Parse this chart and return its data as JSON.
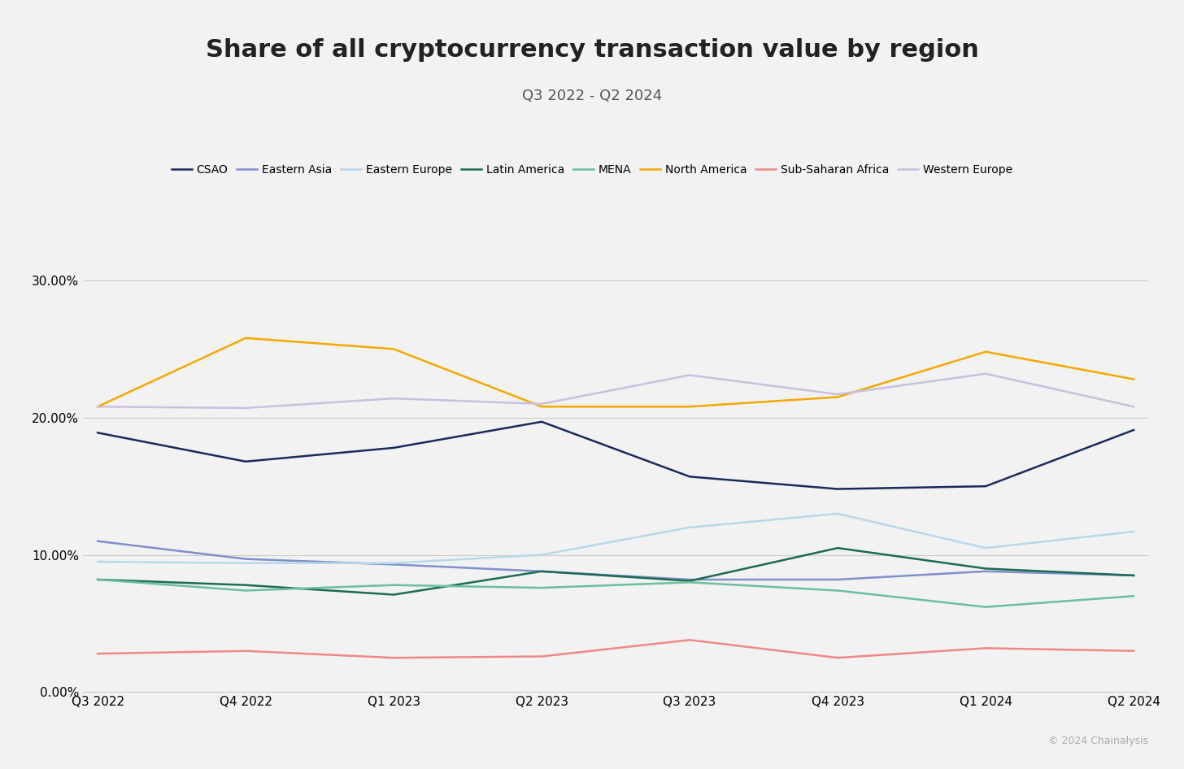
{
  "title": "Share of all cryptocurrency transaction value by region",
  "subtitle": "Q3 2022 - Q2 2024",
  "copyright": "© 2024 Chainalysis",
  "x_labels": [
    "Q3 2022",
    "Q4 2022",
    "Q1 2023",
    "Q2 2023",
    "Q3 2023",
    "Q4 2023",
    "Q1 2024",
    "Q2 2024"
  ],
  "series": [
    {
      "name": "CSAO",
      "color": "#1b2a5c",
      "values": [
        0.189,
        0.168,
        0.178,
        0.197,
        0.157,
        0.148,
        0.15,
        0.191
      ]
    },
    {
      "name": "Eastern Asia",
      "color": "#8090cc",
      "values": [
        0.11,
        0.097,
        0.093,
        0.088,
        0.082,
        0.082,
        0.088,
        0.085
      ]
    },
    {
      "name": "Eastern Europe",
      "color": "#b8d8ea",
      "values": [
        0.095,
        0.094,
        0.094,
        0.1,
        0.12,
        0.13,
        0.105,
        0.117
      ]
    },
    {
      "name": "Latin America",
      "color": "#1c6b54",
      "values": [
        0.082,
        0.078,
        0.071,
        0.088,
        0.081,
        0.105,
        0.09,
        0.085
      ]
    },
    {
      "name": "MENA",
      "color": "#6abf9e",
      "values": [
        0.082,
        0.074,
        0.078,
        0.076,
        0.08,
        0.074,
        0.062,
        0.07
      ]
    },
    {
      "name": "North America",
      "color": "#f5a800",
      "values": [
        0.208,
        0.258,
        0.25,
        0.208,
        0.208,
        0.215,
        0.248,
        0.228
      ]
    },
    {
      "name": "Sub-Saharan Africa",
      "color": "#f08888",
      "values": [
        0.028,
        0.03,
        0.025,
        0.026,
        0.038,
        0.025,
        0.032,
        0.03
      ]
    },
    {
      "name": "Western Europe",
      "color": "#cbbfe0",
      "values": [
        0.208,
        0.207,
        0.214,
        0.21,
        0.231,
        0.217,
        0.232,
        0.208
      ]
    }
  ],
  "ylim": [
    0.0,
    0.325
  ],
  "yticks": [
    0.0,
    0.1,
    0.2,
    0.3
  ],
  "ytick_labels": [
    "0.00%",
    "10.00%",
    "20.00%",
    "30.00%"
  ],
  "background_color": "#f2f2f2",
  "grid_color": "#cccccc",
  "title_fontsize": 22,
  "subtitle_fontsize": 13,
  "legend_fontsize": 10,
  "tick_fontsize": 11,
  "copyright_fontsize": 9
}
